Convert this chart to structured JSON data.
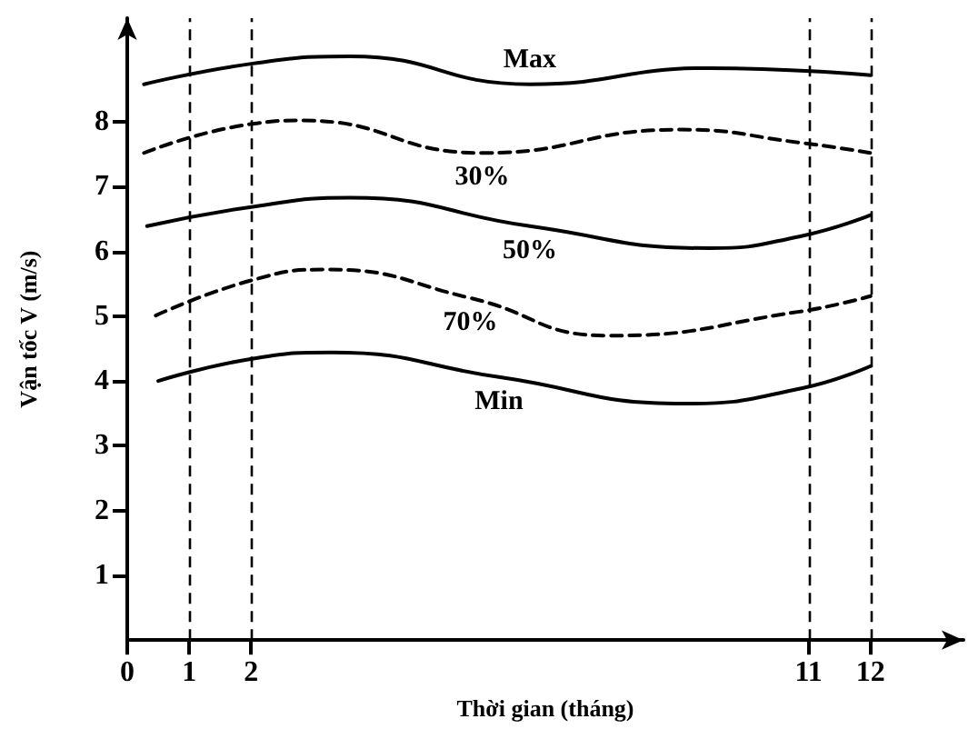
{
  "chart_data": {
    "type": "line",
    "xlabel": "Thời gian (tháng)",
    "ylabel": "Vận tốc V (m/s)",
    "xlim": [
      0,
      13.5
    ],
    "ylim": [
      0,
      9.6
    ],
    "xticks": [
      0,
      1,
      2,
      11,
      12
    ],
    "yticks": [
      1,
      2,
      3,
      4,
      5,
      6,
      7,
      8
    ],
    "grid": false,
    "marker": "none",
    "series": [
      {
        "name": "Max",
        "color": "#000000",
        "line_style": "solid",
        "x": [
          0.27,
          2.03,
          3.6,
          6.5,
          9.4,
          12
        ],
        "values": [
          8.58,
          8.9,
          9.01,
          8.58,
          8.83,
          8.72
        ]
      },
      {
        "name": "30%",
        "color": "#000000",
        "line_style": "dashed",
        "x": [
          0.27,
          2.03,
          2.83,
          5.73,
          8.92,
          10.85,
          12
        ],
        "values": [
          7.52,
          7.97,
          8.02,
          7.52,
          7.88,
          7.68,
          7.52
        ]
      },
      {
        "name": "50%",
        "color": "#000000",
        "line_style": "solid",
        "x": [
          0.32,
          2.03,
          3.6,
          6.5,
          9.4,
          10.85,
          12
        ],
        "values": [
          6.39,
          6.69,
          6.83,
          6.39,
          6.05,
          6.23,
          6.56
        ]
      },
      {
        "name": "70%",
        "color": "#000000",
        "line_style": "dashed",
        "x": [
          0.46,
          2.03,
          3.22,
          5.54,
          7.76,
          10.85,
          12
        ],
        "values": [
          5.01,
          5.56,
          5.72,
          5.28,
          4.7,
          5.07,
          5.31
        ]
      },
      {
        "name": "Min",
        "color": "#000000",
        "line_style": "solid",
        "x": [
          0.5,
          2.06,
          3.3,
          6.0,
          9.0,
          10.9,
          12
        ],
        "values": [
          4.0,
          4.35,
          4.44,
          4.06,
          3.65,
          3.89,
          4.23
        ]
      }
    ],
    "ref_lines": [
      {
        "axis": "x",
        "value": 1,
        "line_style": "dashed",
        "color": "#000000"
      },
      {
        "axis": "x",
        "value": 2,
        "line_style": "dashed",
        "color": "#000000"
      },
      {
        "axis": "x",
        "value": 11,
        "line_style": "dashed",
        "color": "#000000"
      },
      {
        "axis": "x",
        "value": 12,
        "line_style": "dashed",
        "color": "#000000"
      }
    ]
  }
}
